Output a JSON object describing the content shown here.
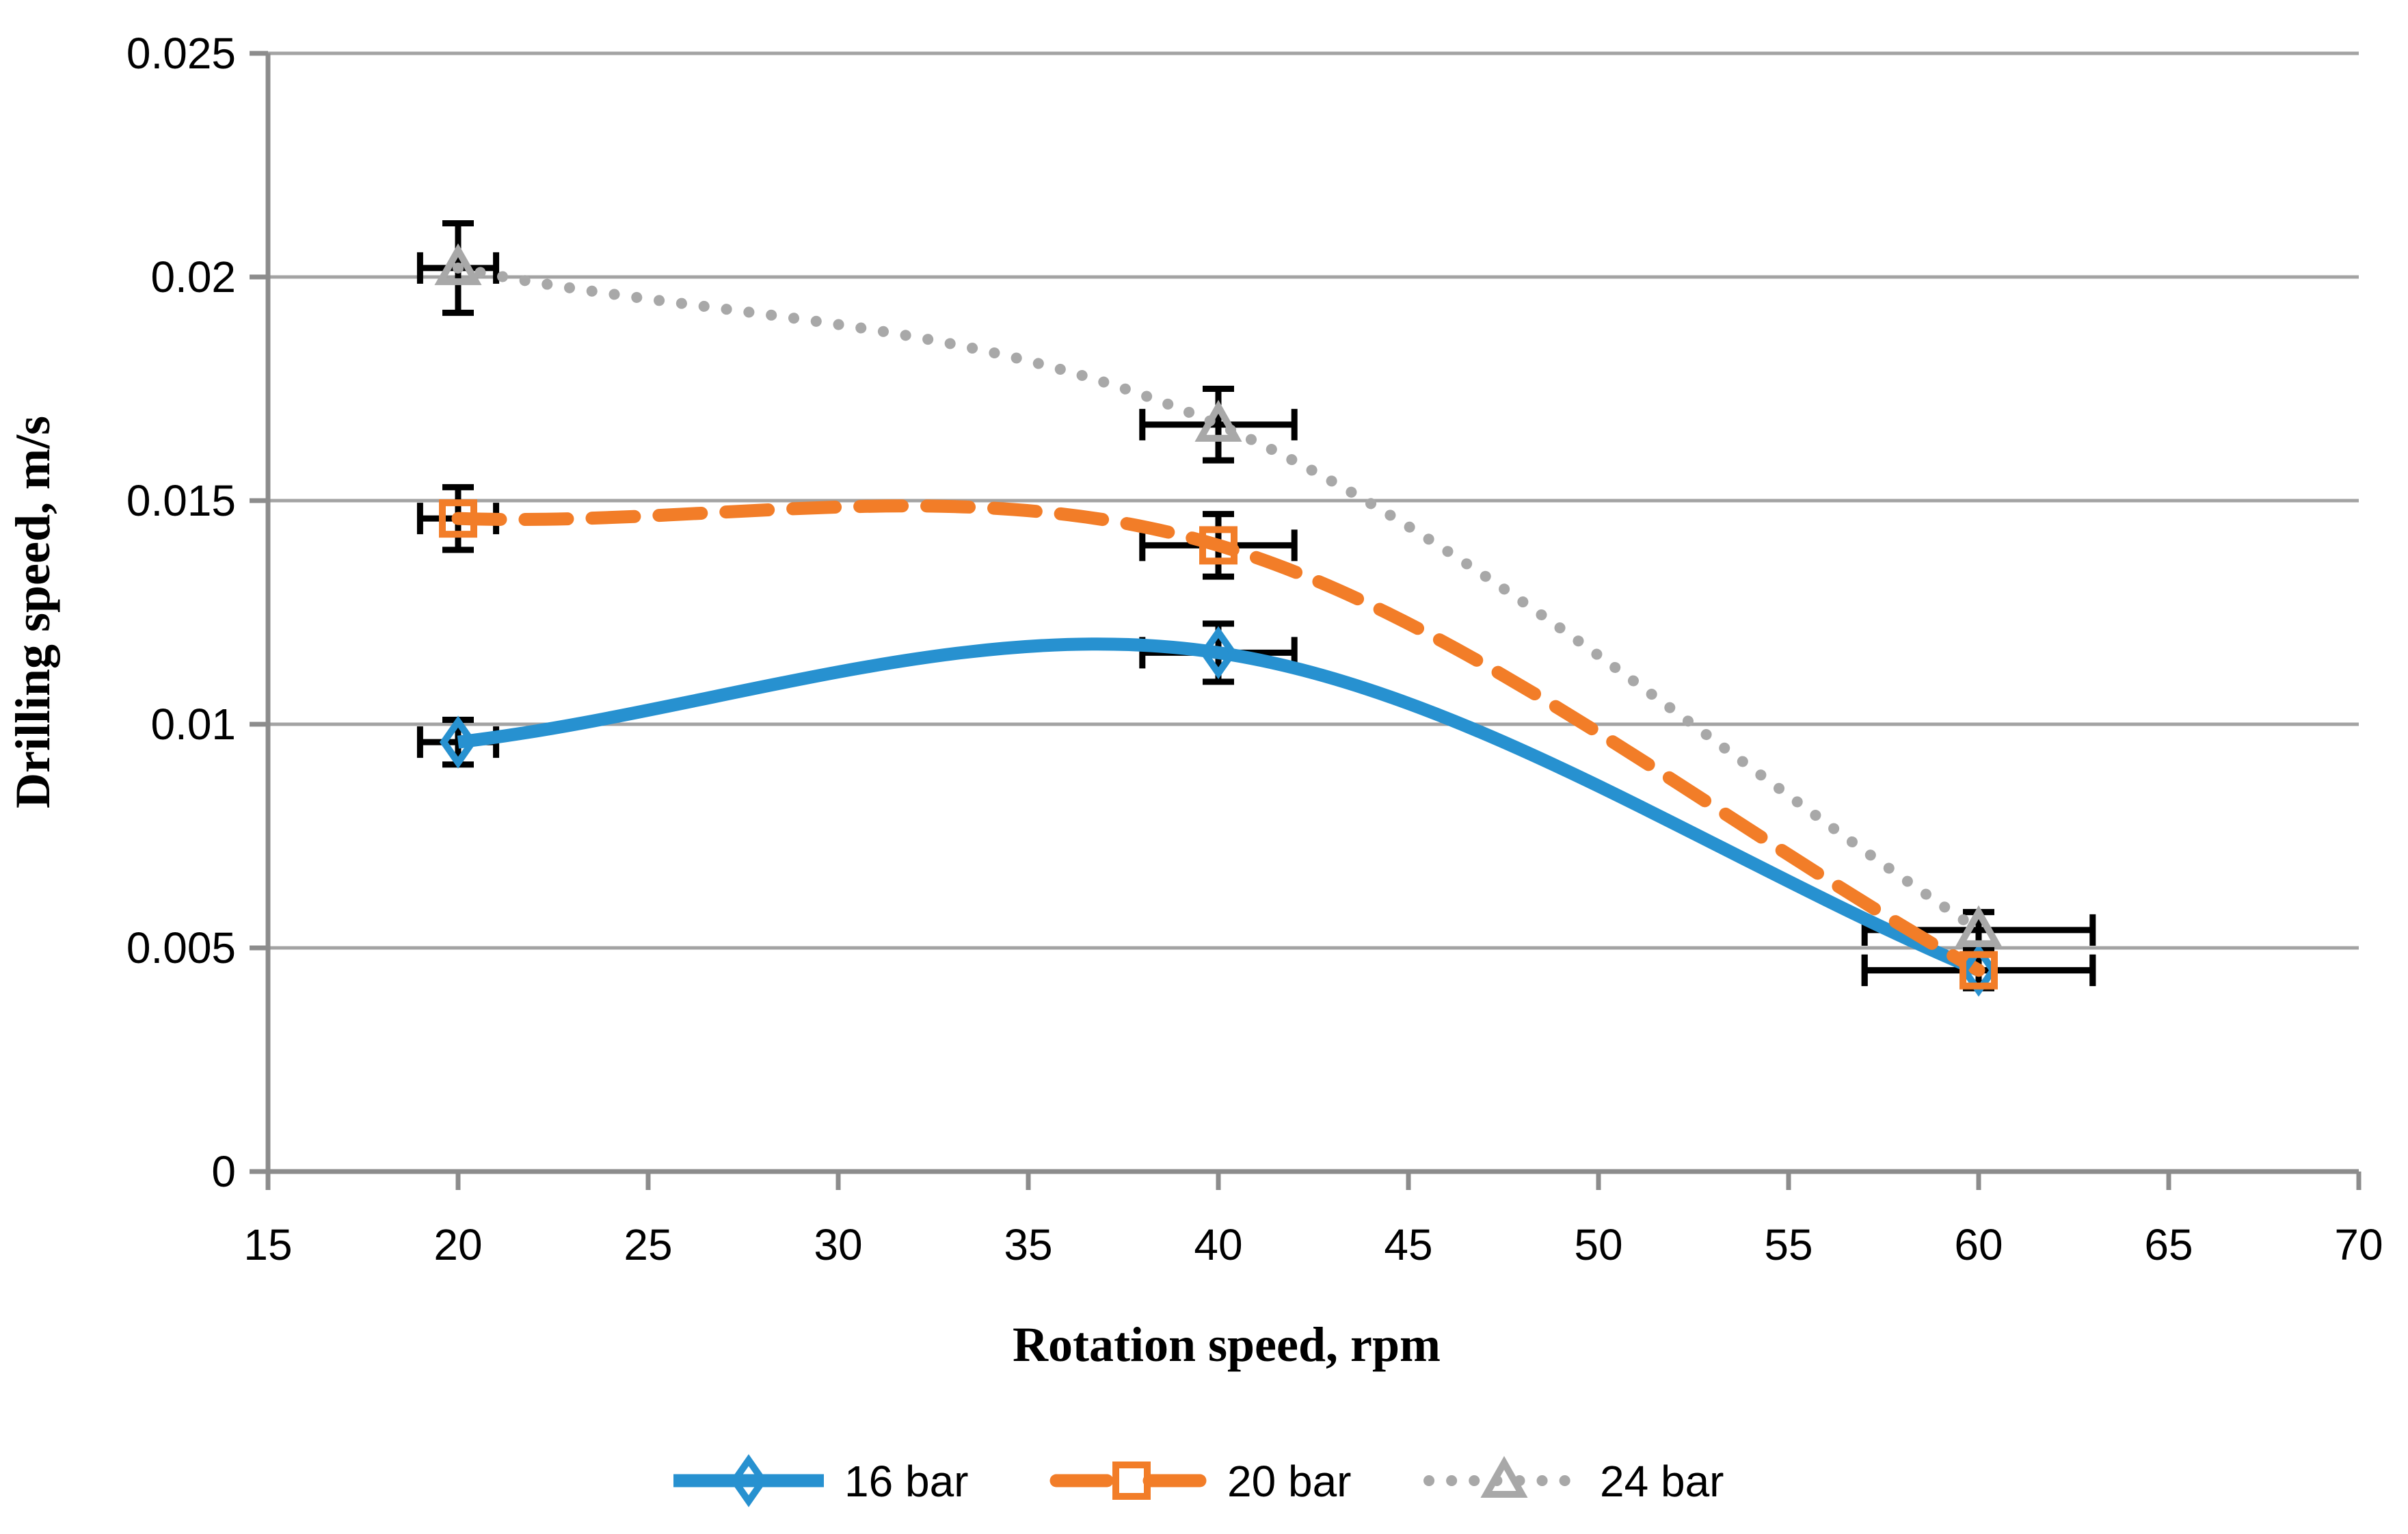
{
  "chart_data": {
    "type": "line",
    "title": "",
    "xlabel": "Rotation speed, rpm",
    "ylabel": "Drilling speed, m/s",
    "xlim": [
      15,
      70
    ],
    "ylim": [
      0,
      0.025
    ],
    "x_tick_step": 5,
    "y_tick_step": 0.005,
    "x_ticks": [
      "15",
      "20",
      "25",
      "30",
      "35",
      "40",
      "45",
      "50",
      "55",
      "60",
      "65",
      "70"
    ],
    "y_ticks": [
      "0",
      "0.005",
      "0.01",
      "0.015",
      "0.02",
      "0.025"
    ],
    "grid": "horizontal-only",
    "legend_position": "bottom-center",
    "line_smoothing": true,
    "error_bar_color": "#000000",
    "series": [
      {
        "name": "16 bar",
        "color": "#2791D0",
        "line_style": "solid",
        "marker": "diamond",
        "x": [
          20,
          40,
          60
        ],
        "y": [
          0.0096,
          0.0116,
          0.0045
        ],
        "x_err": [
          1,
          2,
          3
        ],
        "y_err": [
          0.0005,
          0.00065,
          0.0004
        ]
      },
      {
        "name": "20 bar",
        "color": "#F27D28",
        "line_style": "dashed",
        "marker": "square",
        "x": [
          20,
          40,
          60
        ],
        "y": [
          0.0146,
          0.014,
          0.0045
        ],
        "x_err": [
          1,
          2,
          3
        ],
        "y_err": [
          0.0007,
          0.0007,
          0.0004
        ]
      },
      {
        "name": "24 bar",
        "color": "#A8A8A8",
        "line_style": "dotted",
        "marker": "triangle",
        "x": [
          20,
          40,
          60
        ],
        "y": [
          0.0202,
          0.0167,
          0.0054
        ],
        "x_err": [
          1,
          2,
          3
        ],
        "y_err": [
          0.001,
          0.0008,
          0.0004
        ]
      }
    ]
  },
  "colors": {
    "background": "#FFFFFF",
    "gridline": "#A3A3A3",
    "axis": "#8C8C8C",
    "text": "#000000"
  }
}
